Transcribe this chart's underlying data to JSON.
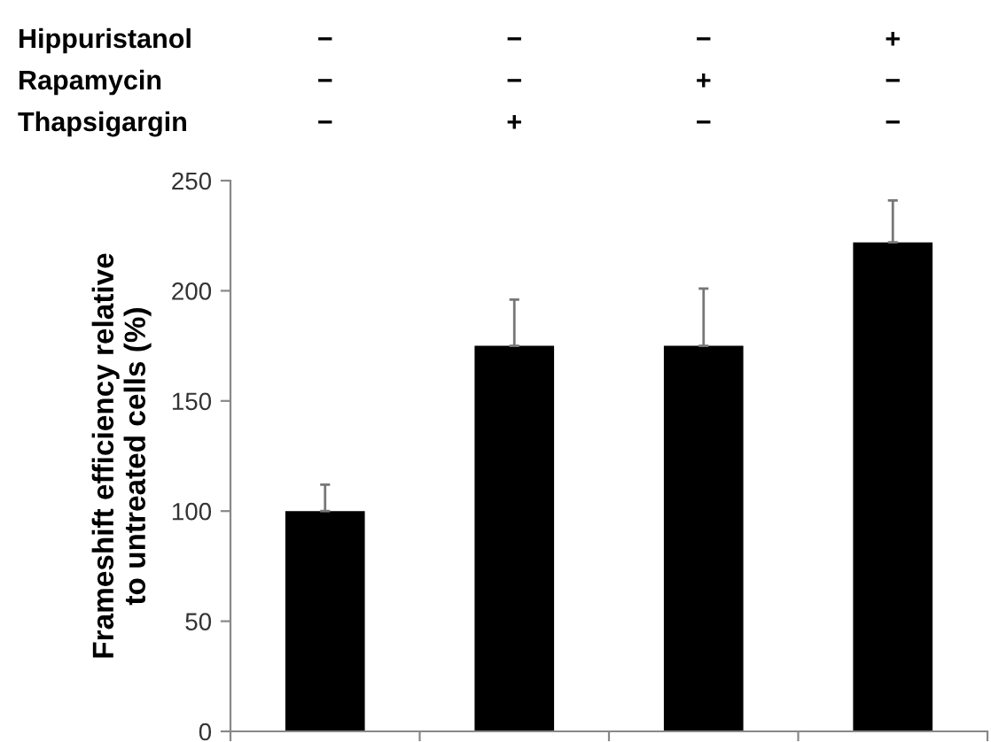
{
  "chart_data": {
    "type": "bar",
    "ylabel": "Frameshift efficiency relative\nto untreated cells (%)",
    "categories": [
      null,
      null,
      null,
      null
    ],
    "annotations": [
      "Hippuristanol",
      "−",
      "−",
      "−",
      "+",
      "Rapamycin",
      "−",
      "−",
      "+",
      "−",
      "Thapsigargin",
      "−",
      "+",
      "−",
      "−"
    ],
    "values": [
      100,
      175,
      175,
      222
    ],
    "errors": [
      [
        100,
        112
      ],
      [
        175,
        196
      ],
      [
        175,
        201
      ],
      [
        222,
        241
      ]
    ],
    "color": "#000000",
    "ylim": [
      0,
      250
    ],
    "yticks": [
      0,
      50,
      100,
      150,
      200,
      250
    ],
    "grid": false,
    "legend": false
  }
}
